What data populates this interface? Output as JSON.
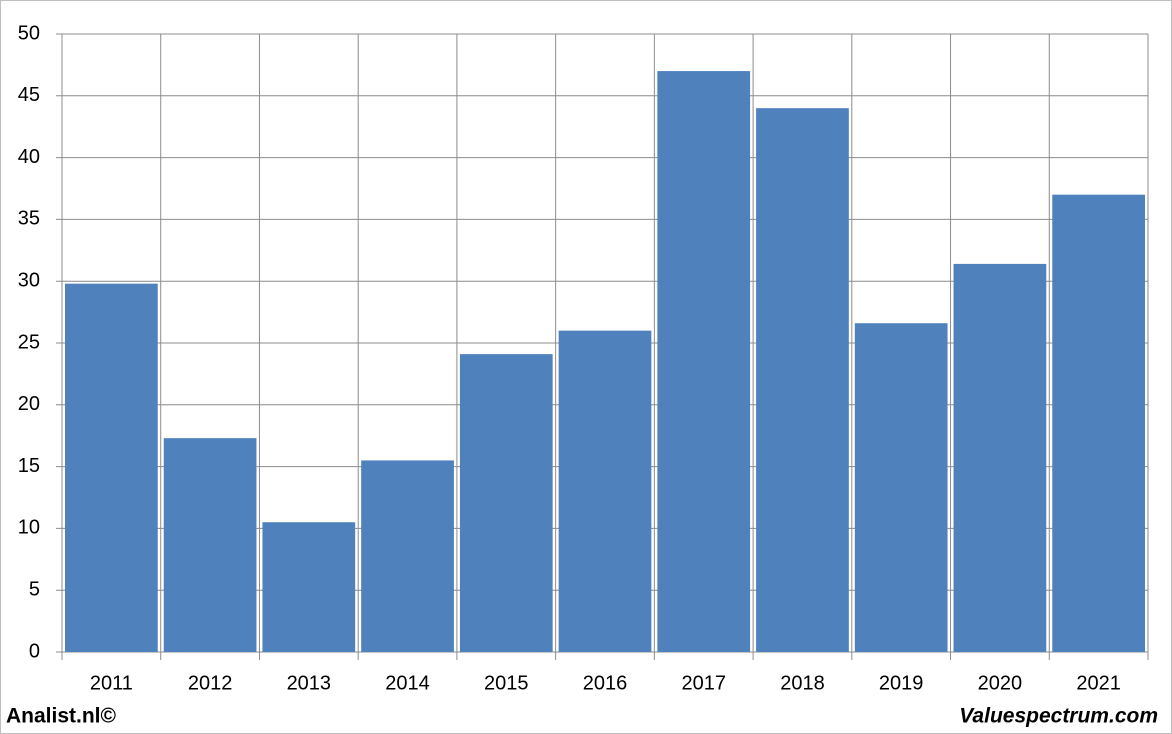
{
  "chart_data": {
    "type": "bar",
    "categories": [
      "2011",
      "2012",
      "2013",
      "2014",
      "2015",
      "2016",
      "2017",
      "2018",
      "2019",
      "2020",
      "2021"
    ],
    "values": [
      29.8,
      17.3,
      10.5,
      15.5,
      24.1,
      26.0,
      47.0,
      44.0,
      26.6,
      31.4,
      37.0
    ],
    "color": "#4f81bd",
    "ylim": [
      0,
      50
    ],
    "yticks": [
      0,
      5,
      10,
      15,
      20,
      25,
      30,
      35,
      40,
      45,
      50
    ],
    "grid": true
  },
  "footer": {
    "left": "Analist.nl©",
    "right": "Valuespectrum.com"
  }
}
